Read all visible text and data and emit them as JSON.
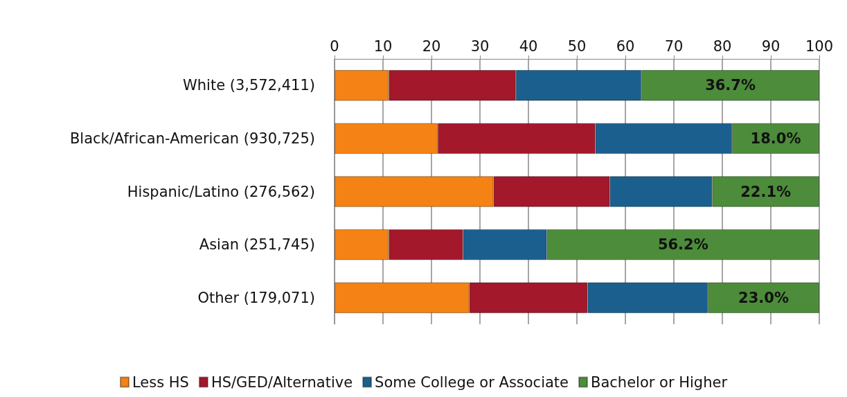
{
  "chart_data": {
    "type": "bar",
    "orientation": "horizontal",
    "stacked": true,
    "categories": [
      "White (3,572,411)",
      "Black/African-American (930,725)",
      "Hispanic/Latino (276,562)",
      "Asian (251,745)",
      "Other (179,071)"
    ],
    "series": [
      {
        "name": "Less HS",
        "color": "#f58214",
        "values": [
          11.2,
          21.3,
          32.8,
          11.2,
          27.8
        ]
      },
      {
        "name": "HS/GED/Alternative",
        "color": "#a4182c",
        "values": [
          26.2,
          32.5,
          24.0,
          15.3,
          24.4
        ]
      },
      {
        "name": "Some College or Associate",
        "color": "#1b5f8e",
        "values": [
          25.9,
          28.2,
          21.1,
          17.3,
          24.8
        ]
      },
      {
        "name": "Bachelor or Higher",
        "color": "#4c8c3a",
        "values": [
          36.7,
          18.0,
          22.1,
          56.2,
          23.0
        ],
        "value_labels": [
          "36.7%",
          "18.0%",
          "22.1%",
          "56.2%",
          "23.0%"
        ]
      }
    ],
    "xlim": [
      0,
      100
    ],
    "xticks": [
      0,
      10,
      20,
      30,
      40,
      50,
      60,
      70,
      80,
      90,
      100
    ],
    "grid": "x",
    "legend": "bottom"
  }
}
